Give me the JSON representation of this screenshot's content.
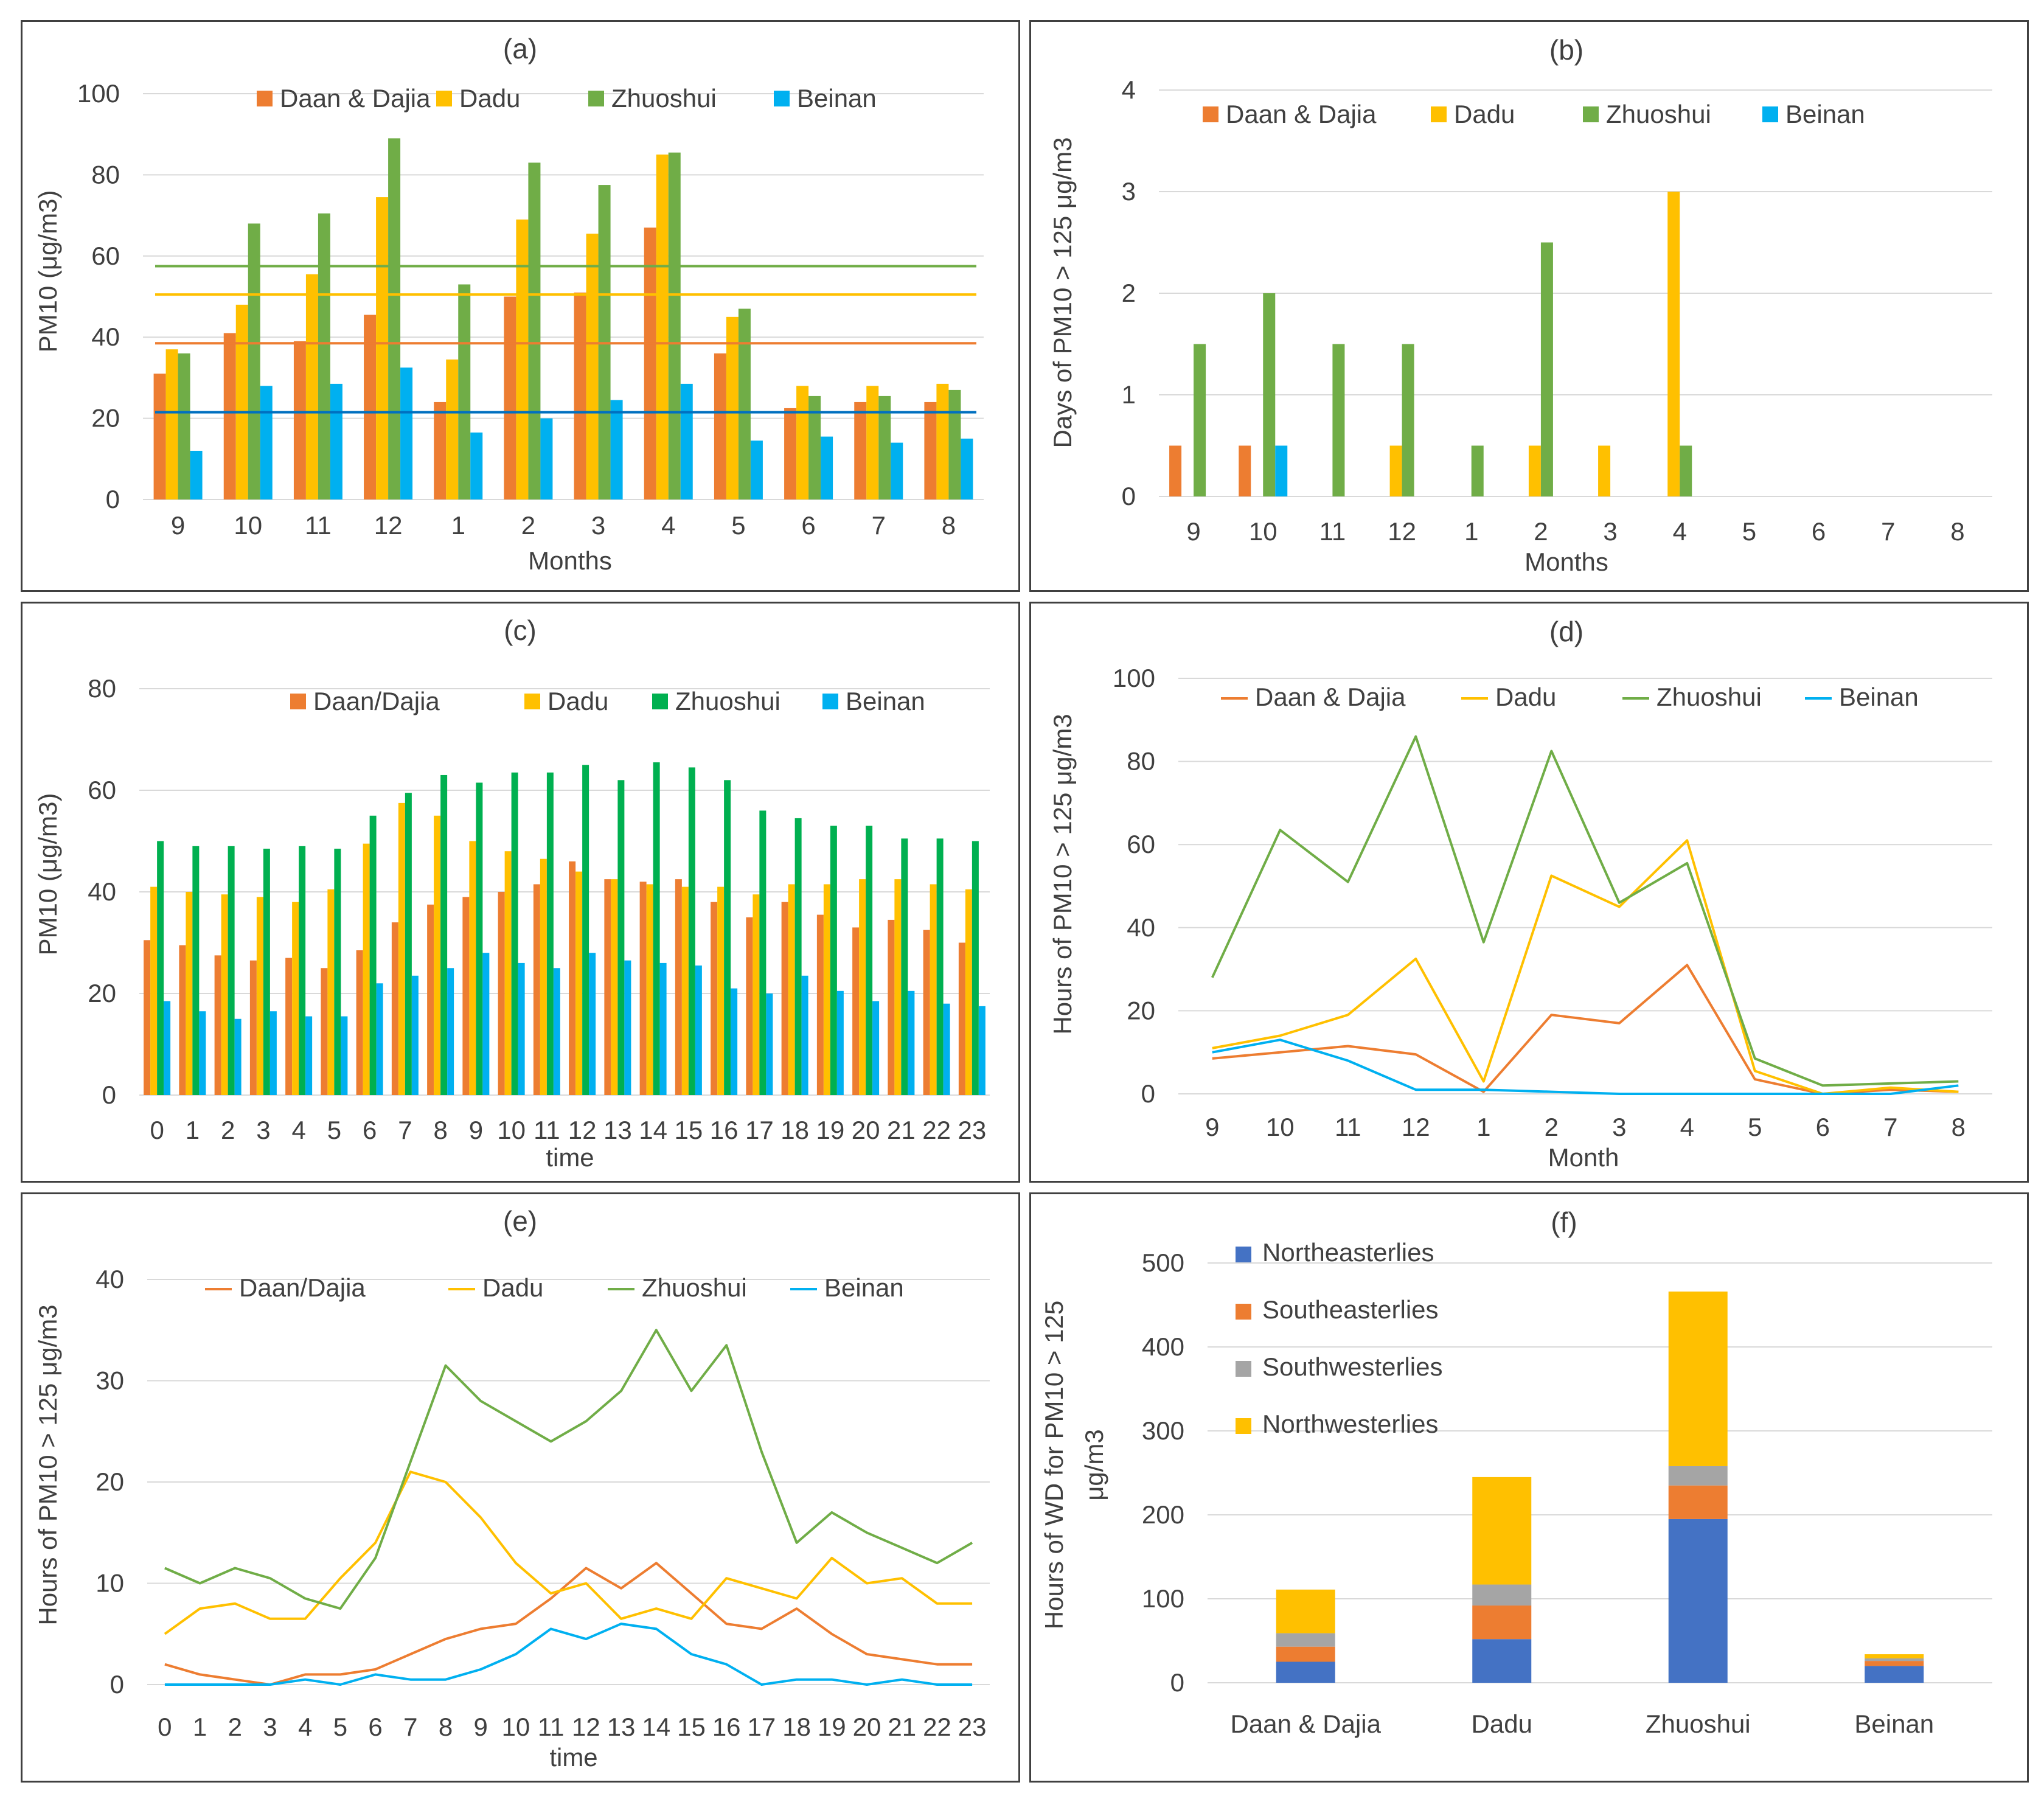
{
  "colors": {
    "orange": "#ED7D31",
    "yellow": "#FFC000",
    "green": "#70AD47",
    "dgreen": "#00B050",
    "blue": "#00B0F0",
    "lblue": "#0070C0",
    "nblue": "#4472C4",
    "gray": "#A5A5A5",
    "grid": "#D9D9D9"
  },
  "chart_data": [
    {
      "id": "a",
      "type": "bar",
      "title": "(a)",
      "xlabel": "Months",
      "ylabel": "PM10 (μg/m3)",
      "ylim": [
        0,
        100
      ],
      "yticks": [
        0,
        20,
        40,
        60,
        80,
        100
      ],
      "categories": [
        "9",
        "10",
        "11",
        "12",
        "1",
        "2",
        "3",
        "4",
        "5",
        "6",
        "7",
        "8"
      ],
      "series": [
        {
          "name": "Daan & Dajia",
          "color": "orange",
          "values": [
            31,
            41,
            39,
            45.5,
            24,
            50,
            51,
            67,
            36,
            22.5,
            24,
            24
          ]
        },
        {
          "name": "Dadu",
          "color": "yellow",
          "values": [
            37,
            48,
            55.5,
            74.5,
            34.5,
            69,
            65.5,
            85,
            45,
            28,
            28,
            28.5
          ]
        },
        {
          "name": "Zhuoshui",
          "color": "green",
          "values": [
            36,
            68,
            70.5,
            89,
            53,
            83,
            77.5,
            85.5,
            47,
            25.5,
            25.5,
            27
          ]
        },
        {
          "name": "Beinan",
          "color": "blue",
          "values": [
            12,
            28,
            28.5,
            32.5,
            16.5,
            20,
            24.5,
            28.5,
            14.5,
            15.5,
            14,
            15
          ]
        }
      ],
      "mean_lines": [
        {
          "name": "Zhuoshui",
          "color": "green",
          "value": 57.5
        },
        {
          "name": "Dadu",
          "color": "yellow",
          "value": 50.5
        },
        {
          "name": "Daan & Dajia",
          "color": "orange",
          "value": 38.5
        },
        {
          "name": "Beinan",
          "color": "lblue",
          "value": 21.5
        }
      ]
    },
    {
      "id": "b",
      "type": "bar",
      "title": "(b)",
      "xlabel": "Months",
      "ylabel": "Days of PM10 > 125 μg/m3",
      "ylim": [
        0,
        4
      ],
      "yticks": [
        0,
        1,
        2,
        3,
        4
      ],
      "categories": [
        "9",
        "10",
        "11",
        "12",
        "1",
        "2",
        "3",
        "4",
        "5",
        "6",
        "7",
        "8"
      ],
      "series": [
        {
          "name": "Daan & Dajia",
          "color": "orange",
          "values": [
            0.5,
            0.5,
            0,
            0,
            0,
            0,
            0,
            0,
            0,
            0,
            0,
            0
          ]
        },
        {
          "name": "Dadu",
          "color": "yellow",
          "values": [
            0,
            0,
            0,
            0.5,
            0,
            0.5,
            0.5,
            3,
            0,
            0,
            0,
            0
          ]
        },
        {
          "name": "Zhuoshui",
          "color": "green",
          "values": [
            1.5,
            2,
            1.5,
            1.5,
            0.5,
            2.5,
            0,
            0.5,
            0,
            0,
            0,
            0
          ]
        },
        {
          "name": "Beinan",
          "color": "blue",
          "values": [
            0,
            0.5,
            0,
            0,
            0,
            0,
            0,
            0,
            0,
            0,
            0,
            0
          ]
        }
      ]
    },
    {
      "id": "c",
      "type": "bar",
      "title": "(c)",
      "xlabel": "time",
      "ylabel": "PM10 (μg/m3)",
      "ylim": [
        0,
        80
      ],
      "yticks": [
        0,
        20,
        40,
        60,
        80
      ],
      "categories": [
        "0",
        "1",
        "2",
        "3",
        "4",
        "5",
        "6",
        "7",
        "8",
        "9",
        "10",
        "11",
        "12",
        "13",
        "14",
        "15",
        "16",
        "17",
        "18",
        "19",
        "20",
        "21",
        "22",
        "23"
      ],
      "series": [
        {
          "name": "Daan/Dajia",
          "color": "orange",
          "values": [
            30.5,
            29.5,
            27.5,
            26.5,
            27,
            25,
            28.5,
            34,
            37.5,
            39,
            40,
            41.5,
            46,
            42.5,
            42,
            42.5,
            38,
            35,
            38,
            35.5,
            33,
            34.5,
            32.5,
            30
          ]
        },
        {
          "name": "Dadu",
          "color": "yellow",
          "values": [
            41,
            40,
            39.5,
            39,
            38,
            40.5,
            49.5,
            57.5,
            55,
            50,
            48,
            46.5,
            44,
            42.5,
            41.5,
            41,
            41,
            39.5,
            41.5,
            41.5,
            42.5,
            42.5,
            41.5,
            40.5
          ]
        },
        {
          "name": "Zhuoshui",
          "color": "dgreen",
          "values": [
            50,
            49,
            49,
            48.5,
            49,
            48.5,
            55,
            59.5,
            63,
            61.5,
            63.5,
            63.5,
            65,
            62,
            65.5,
            64.5,
            62,
            56,
            54.5,
            53,
            53,
            50.5,
            50.5,
            50
          ]
        },
        {
          "name": "Beinan",
          "color": "blue",
          "values": [
            18.5,
            16.5,
            15,
            16.5,
            15.5,
            15.5,
            22,
            23.5,
            25,
            28,
            26,
            25,
            28,
            26.5,
            26,
            25.5,
            21,
            20,
            23.5,
            20.5,
            18.5,
            20.5,
            18,
            17.5
          ]
        }
      ]
    },
    {
      "id": "d",
      "type": "line",
      "title": "(d)",
      "xlabel": "Month",
      "ylabel": "Hours of PM10 > 125 μg/m3",
      "ylim": [
        0,
        100
      ],
      "yticks": [
        0,
        20,
        40,
        60,
        80,
        100
      ],
      "x": [
        "9",
        "10",
        "11",
        "12",
        "1",
        "2",
        "3",
        "4",
        "5",
        "6",
        "7",
        "8"
      ],
      "series": [
        {
          "name": "Daan & Dajia",
          "color": "orange",
          "values": [
            8.5,
            10,
            11.5,
            9.5,
            0.5,
            19,
            17,
            31,
            3.5,
            0,
            1,
            0.5
          ]
        },
        {
          "name": "Dadu",
          "color": "yellow",
          "values": [
            11,
            14,
            19,
            32.5,
            3,
            52.5,
            45,
            61,
            5.5,
            0,
            1.5,
            0.5
          ]
        },
        {
          "name": "Zhuoshui",
          "color": "green",
          "values": [
            28,
            63.5,
            51,
            86,
            36.5,
            82.5,
            46,
            55.5,
            8.5,
            2,
            2.5,
            3
          ]
        },
        {
          "name": "Beinan",
          "color": "blue",
          "values": [
            10,
            13,
            8,
            1,
            1,
            0.5,
            0,
            0,
            0,
            0,
            0,
            2
          ]
        }
      ]
    },
    {
      "id": "e",
      "type": "line",
      "title": "(e)",
      "xlabel": "time",
      "ylabel": "Hours of PM10 > 125 μg/m3",
      "ylim": [
        0,
        40
      ],
      "yticks": [
        0,
        10,
        20,
        30,
        40
      ],
      "x": [
        "0",
        "1",
        "2",
        "3",
        "4",
        "5",
        "6",
        "7",
        "8",
        "9",
        "10",
        "11",
        "12",
        "13",
        "14",
        "15",
        "16",
        "17",
        "18",
        "19",
        "20",
        "21",
        "22",
        "23"
      ],
      "series": [
        {
          "name": "Daan/Dajia",
          "color": "orange",
          "values": [
            2,
            1,
            0.5,
            0,
            1,
            1,
            1.5,
            3,
            4.5,
            5.5,
            6,
            8.5,
            11.5,
            9.5,
            12,
            9,
            6,
            5.5,
            7.5,
            5,
            3,
            2.5,
            2,
            2
          ]
        },
        {
          "name": "Dadu",
          "color": "yellow",
          "values": [
            5,
            7.5,
            8,
            6.5,
            6.5,
            10.5,
            14,
            21,
            20,
            16.5,
            12,
            9,
            10,
            6.5,
            7.5,
            6.5,
            10.5,
            9.5,
            8.5,
            12.5,
            10,
            10.5,
            8,
            8
          ]
        },
        {
          "name": "Zhuoshui",
          "color": "green",
          "values": [
            11.5,
            10,
            11.5,
            10.5,
            8.5,
            7.5,
            12.5,
            22,
            31.5,
            28,
            26,
            24,
            26,
            29,
            35,
            29,
            33.5,
            23,
            14,
            17,
            15,
            13.5,
            12,
            14
          ]
        },
        {
          "name": "Beinan",
          "color": "blue",
          "values": [
            0,
            0,
            0,
            0,
            0.5,
            0,
            1,
            0.5,
            0.5,
            1.5,
            3,
            5.5,
            4.5,
            6,
            5.5,
            3,
            2,
            0,
            0.5,
            0.5,
            0,
            0.5,
            0,
            0
          ]
        }
      ]
    },
    {
      "id": "f",
      "type": "bar",
      "stacked": true,
      "title": "(f)",
      "xlabel": "",
      "ylabel": "Hours of WD for PM10 > 125 μg/m3",
      "ylim": [
        0,
        500
      ],
      "yticks": [
        0,
        100,
        200,
        300,
        400,
        500
      ],
      "categories": [
        "Daan & Dajia",
        "Dadu",
        "Zhuoshui",
        "Beinan"
      ],
      "series": [
        {
          "name": "Northeasterlies",
          "color": "nblue",
          "values": [
            25,
            52,
            195,
            20
          ]
        },
        {
          "name": "Southeasterlies",
          "color": "orange",
          "values": [
            18,
            40,
            40,
            6
          ]
        },
        {
          "name": "Southwesterlies",
          "color": "gray",
          "values": [
            16,
            25,
            23,
            3
          ]
        },
        {
          "name": "Northwesterlies",
          "color": "yellow",
          "values": [
            52,
            128,
            208,
            5
          ]
        }
      ]
    }
  ]
}
